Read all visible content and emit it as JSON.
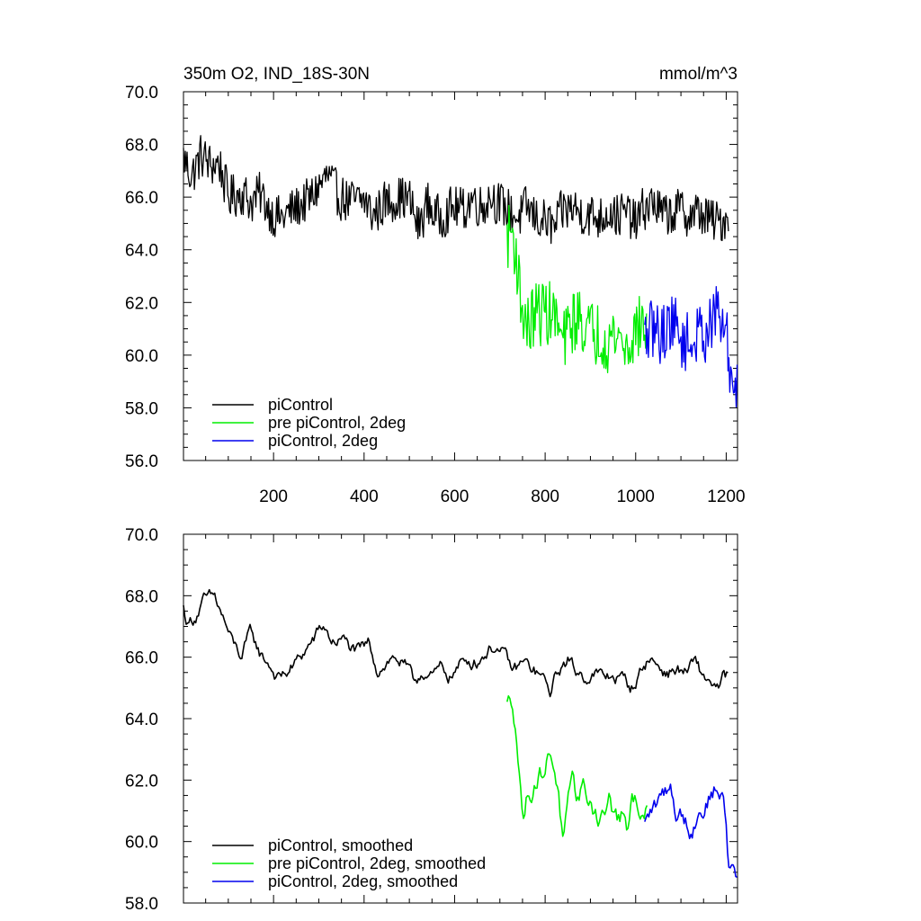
{
  "chart_data": [
    {
      "type": "line",
      "title": "350m O2, IND_18S-30N",
      "units": "mmol/m^3",
      "xlim": [
        1,
        1225
      ],
      "ylim": [
        56.0,
        70.0
      ],
      "yticks": [
        "56.0",
        "58.0",
        "60.0",
        "62.0",
        "64.0",
        "66.0",
        "68.0",
        "70.0"
      ],
      "xticks": [
        "200",
        "400",
        "600",
        "800",
        "1000",
        "1200"
      ],
      "legend_position": "lower-left",
      "series": [
        {
          "name": "piControl",
          "color": "#000000",
          "x_start": 1,
          "x_end": 1205,
          "points": [
            [
              1,
              67.5
            ],
            [
              20,
              66.8
            ],
            [
              40,
              67.6
            ],
            [
              60,
              67.2
            ],
            [
              80,
              67.3
            ],
            [
              100,
              66.0
            ],
            [
              130,
              66.2
            ],
            [
              150,
              65.8
            ],
            [
              170,
              66.1
            ],
            [
              200,
              65.3
            ],
            [
              220,
              65.2
            ],
            [
              240,
              65.5
            ],
            [
              260,
              65.7
            ],
            [
              280,
              65.9
            ],
            [
              300,
              66.4
            ],
            [
              320,
              66.8
            ],
            [
              340,
              66.1
            ],
            [
              360,
              65.9
            ],
            [
              380,
              65.8
            ],
            [
              400,
              65.9
            ],
            [
              420,
              65.3
            ],
            [
              440,
              65.7
            ],
            [
              460,
              65.9
            ],
            [
              480,
              66.0
            ],
            [
              500,
              65.9
            ],
            [
              520,
              64.8
            ],
            [
              540,
              65.8
            ],
            [
              560,
              65.2
            ],
            [
              580,
              65.4
            ],
            [
              600,
              65.6
            ],
            [
              620,
              65.5
            ],
            [
              640,
              66.0
            ],
            [
              660,
              65.6
            ],
            [
              680,
              66.1
            ],
            [
              700,
              65.7
            ],
            [
              720,
              65.5
            ],
            [
              740,
              65.2
            ],
            [
              760,
              65.6
            ],
            [
              780,
              65.2
            ],
            [
              800,
              65.1
            ],
            [
              820,
              64.8
            ],
            [
              840,
              65.5
            ],
            [
              860,
              65.6
            ],
            [
              880,
              65.4
            ],
            [
              900,
              65.3
            ],
            [
              920,
              65.2
            ],
            [
              940,
              65.5
            ],
            [
              960,
              65.3
            ],
            [
              980,
              65.4
            ],
            [
              1000,
              65.0
            ],
            [
              1020,
              65.6
            ],
            [
              1040,
              65.8
            ],
            [
              1060,
              65.3
            ],
            [
              1080,
              65.4
            ],
            [
              1100,
              65.5
            ],
            [
              1120,
              65.3
            ],
            [
              1140,
              65.4
            ],
            [
              1160,
              65.2
            ],
            [
              1180,
              65.0
            ],
            [
              1205,
              65.3
            ]
          ],
          "noise": 0.85
        },
        {
          "name": "pre piControl, 2deg",
          "color": "#00ee00",
          "x_start": 716,
          "x_end": 1025,
          "points": [
            [
              716,
              64.4
            ],
            [
              725,
              64.8
            ],
            [
              735,
              64.0
            ],
            [
              745,
              62.2
            ],
            [
              760,
              61.0
            ],
            [
              780,
              61.6
            ],
            [
              800,
              61.7
            ],
            [
              820,
              61.5
            ],
            [
              840,
              60.4
            ],
            [
              860,
              61.3
            ],
            [
              880,
              61.4
            ],
            [
              900,
              60.8
            ],
            [
              920,
              60.9
            ],
            [
              940,
              60.6
            ],
            [
              960,
              60.8
            ],
            [
              980,
              60.2
            ],
            [
              1000,
              61.0
            ],
            [
              1025,
              61.2
            ]
          ],
          "noise": 1.25
        },
        {
          "name": "piControl, 2deg",
          "color": "#0000ee",
          "x_start": 1020,
          "x_end": 1225,
          "points": [
            [
              1020,
              60.6
            ],
            [
              1040,
              61.0
            ],
            [
              1060,
              60.8
            ],
            [
              1080,
              61.4
            ],
            [
              1100,
              60.6
            ],
            [
              1120,
              60.4
            ],
            [
              1140,
              60.8
            ],
            [
              1160,
              61.0
            ],
            [
              1180,
              61.6
            ],
            [
              1200,
              60.8
            ],
            [
              1210,
              59.2
            ],
            [
              1225,
              58.8
            ]
          ],
          "noise": 1.15
        }
      ]
    },
    {
      "type": "line",
      "title": "",
      "xlim": [
        1,
        1225
      ],
      "ylim": [
        58.0,
        70.0
      ],
      "yticks": [
        "58.0",
        "60.0",
        "62.0",
        "64.0",
        "66.0",
        "68.0",
        "70.0"
      ],
      "legend_position": "lower-left",
      "series": [
        {
          "name": "piControl, smoothed",
          "color": "#000000",
          "x_start": 1,
          "x_end": 1205,
          "points": [
            [
              1,
              67.6
            ],
            [
              10,
              67.1
            ],
            [
              25,
              67.3
            ],
            [
              45,
              67.8
            ],
            [
              70,
              67.9
            ],
            [
              90,
              67.2
            ],
            [
              110,
              66.4
            ],
            [
              130,
              66.0
            ],
            [
              150,
              66.8
            ],
            [
              170,
              66.1
            ],
            [
              190,
              65.8
            ],
            [
              210,
              65.3
            ],
            [
              230,
              65.5
            ],
            [
              250,
              65.8
            ],
            [
              270,
              66.2
            ],
            [
              290,
              66.6
            ],
            [
              310,
              67.0
            ],
            [
              330,
              66.5
            ],
            [
              350,
              66.6
            ],
            [
              370,
              66.3
            ],
            [
              390,
              66.1
            ],
            [
              410,
              66.4
            ],
            [
              430,
              65.6
            ],
            [
              450,
              65.9
            ],
            [
              470,
              66.0
            ],
            [
              490,
              65.7
            ],
            [
              510,
              65.1
            ],
            [
              530,
              65.6
            ],
            [
              550,
              65.3
            ],
            [
              570,
              65.6
            ],
            [
              590,
              65.4
            ],
            [
              610,
              65.7
            ],
            [
              630,
              65.9
            ],
            [
              650,
              65.9
            ],
            [
              670,
              66.2
            ],
            [
              690,
              66.4
            ],
            [
              710,
              66.0
            ],
            [
              730,
              65.5
            ],
            [
              750,
              65.8
            ],
            [
              770,
              65.6
            ],
            [
              790,
              65.4
            ],
            [
              810,
              64.8
            ],
            [
              830,
              65.6
            ],
            [
              850,
              65.9
            ],
            [
              870,
              65.5
            ],
            [
              890,
              65.4
            ],
            [
              910,
              65.5
            ],
            [
              930,
              65.3
            ],
            [
              950,
              65.4
            ],
            [
              970,
              65.3
            ],
            [
              990,
              65.0
            ],
            [
              1010,
              65.5
            ],
            [
              1030,
              66.0
            ],
            [
              1050,
              65.7
            ],
            [
              1070,
              65.5
            ],
            [
              1090,
              65.6
            ],
            [
              1110,
              65.5
            ],
            [
              1130,
              65.8
            ],
            [
              1150,
              65.3
            ],
            [
              1170,
              65.2
            ],
            [
              1185,
              64.9
            ],
            [
              1195,
              65.3
            ],
            [
              1205,
              65.4
            ]
          ],
          "noise": 0.5
        },
        {
          "name": "pre piControl, 2deg, smoothed",
          "color": "#00ee00",
          "x_start": 716,
          "x_end": 1025,
          "points": [
            [
              716,
              64.4
            ],
            [
              728,
              64.6
            ],
            [
              735,
              64.0
            ],
            [
              742,
              62.5
            ],
            [
              750,
              60.8
            ],
            [
              760,
              61.5
            ],
            [
              780,
              62.1
            ],
            [
              800,
              62.4
            ],
            [
              810,
              62.9
            ],
            [
              820,
              62.6
            ],
            [
              830,
              61.6
            ],
            [
              840,
              59.8
            ],
            [
              850,
              61.0
            ],
            [
              860,
              61.5
            ],
            [
              870,
              61.2
            ],
            [
              880,
              61.8
            ],
            [
              890,
              61.6
            ],
            [
              900,
              61.3
            ],
            [
              910,
              61.0
            ],
            [
              920,
              60.8
            ],
            [
              930,
              60.9
            ],
            [
              940,
              61.4
            ],
            [
              950,
              60.9
            ],
            [
              960,
              60.7
            ],
            [
              970,
              60.9
            ],
            [
              980,
              60.0
            ],
            [
              990,
              61.0
            ],
            [
              1000,
              61.4
            ],
            [
              1010,
              61.2
            ],
            [
              1025,
              61.0
            ]
          ],
          "noise": 0.8
        },
        {
          "name": "piControl, 2deg, smoothed",
          "color": "#0000ee",
          "x_start": 1020,
          "x_end": 1225,
          "points": [
            [
              1020,
              60.5
            ],
            [
              1035,
              61.0
            ],
            [
              1050,
              61.2
            ],
            [
              1060,
              61.5
            ],
            [
              1075,
              61.9
            ],
            [
              1090,
              61.0
            ],
            [
              1105,
              60.9
            ],
            [
              1120,
              60.5
            ],
            [
              1135,
              60.8
            ],
            [
              1150,
              61.2
            ],
            [
              1165,
              61.5
            ],
            [
              1180,
              61.9
            ],
            [
              1195,
              61.2
            ],
            [
              1200,
              60.6
            ],
            [
              1205,
              59.4
            ],
            [
              1210,
              59.0
            ],
            [
              1215,
              59.3
            ],
            [
              1225,
              58.8
            ]
          ],
          "noise": 0.75
        }
      ]
    }
  ]
}
